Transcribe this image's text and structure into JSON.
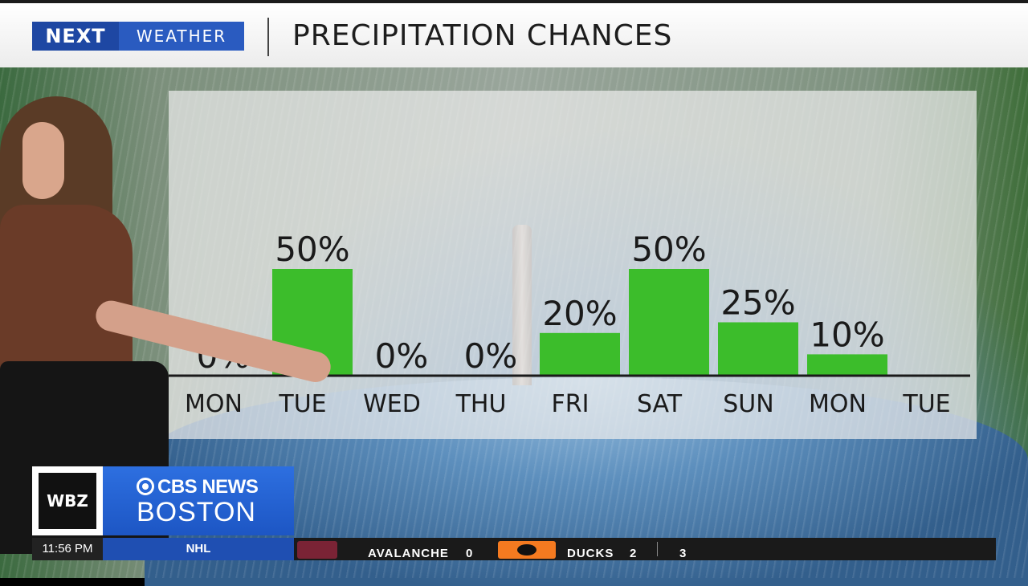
{
  "header": {
    "brand_next": "NEXT",
    "brand_weather": "WEATHER",
    "title": "PRECIPITATION CHANCES"
  },
  "chart_data": {
    "type": "bar",
    "title": "PRECIPITATION CHANCES",
    "categories": [
      "MON",
      "TUE",
      "WED",
      "THU",
      "FRI",
      "SAT",
      "SUN",
      "MON",
      "TUE"
    ],
    "values": [
      0,
      50,
      0,
      0,
      20,
      50,
      25,
      10,
      null
    ],
    "value_labels": [
      "0%",
      "50%",
      "0%",
      "0%",
      "20%",
      "50%",
      "25%",
      "10%",
      ""
    ],
    "ylim": [
      0,
      100
    ],
    "bar_color": "#3cbd2b",
    "grid": false,
    "legend": "none"
  },
  "lower_third": {
    "station": "WBZ",
    "network": "CBS NEWS",
    "city": "BOSTON"
  },
  "ticker": {
    "time": "11:56 PM",
    "league": "NHL",
    "team1": "AVALANCHE",
    "score1": "0",
    "team2": "DUCKS",
    "score2": "2",
    "period": "3"
  }
}
